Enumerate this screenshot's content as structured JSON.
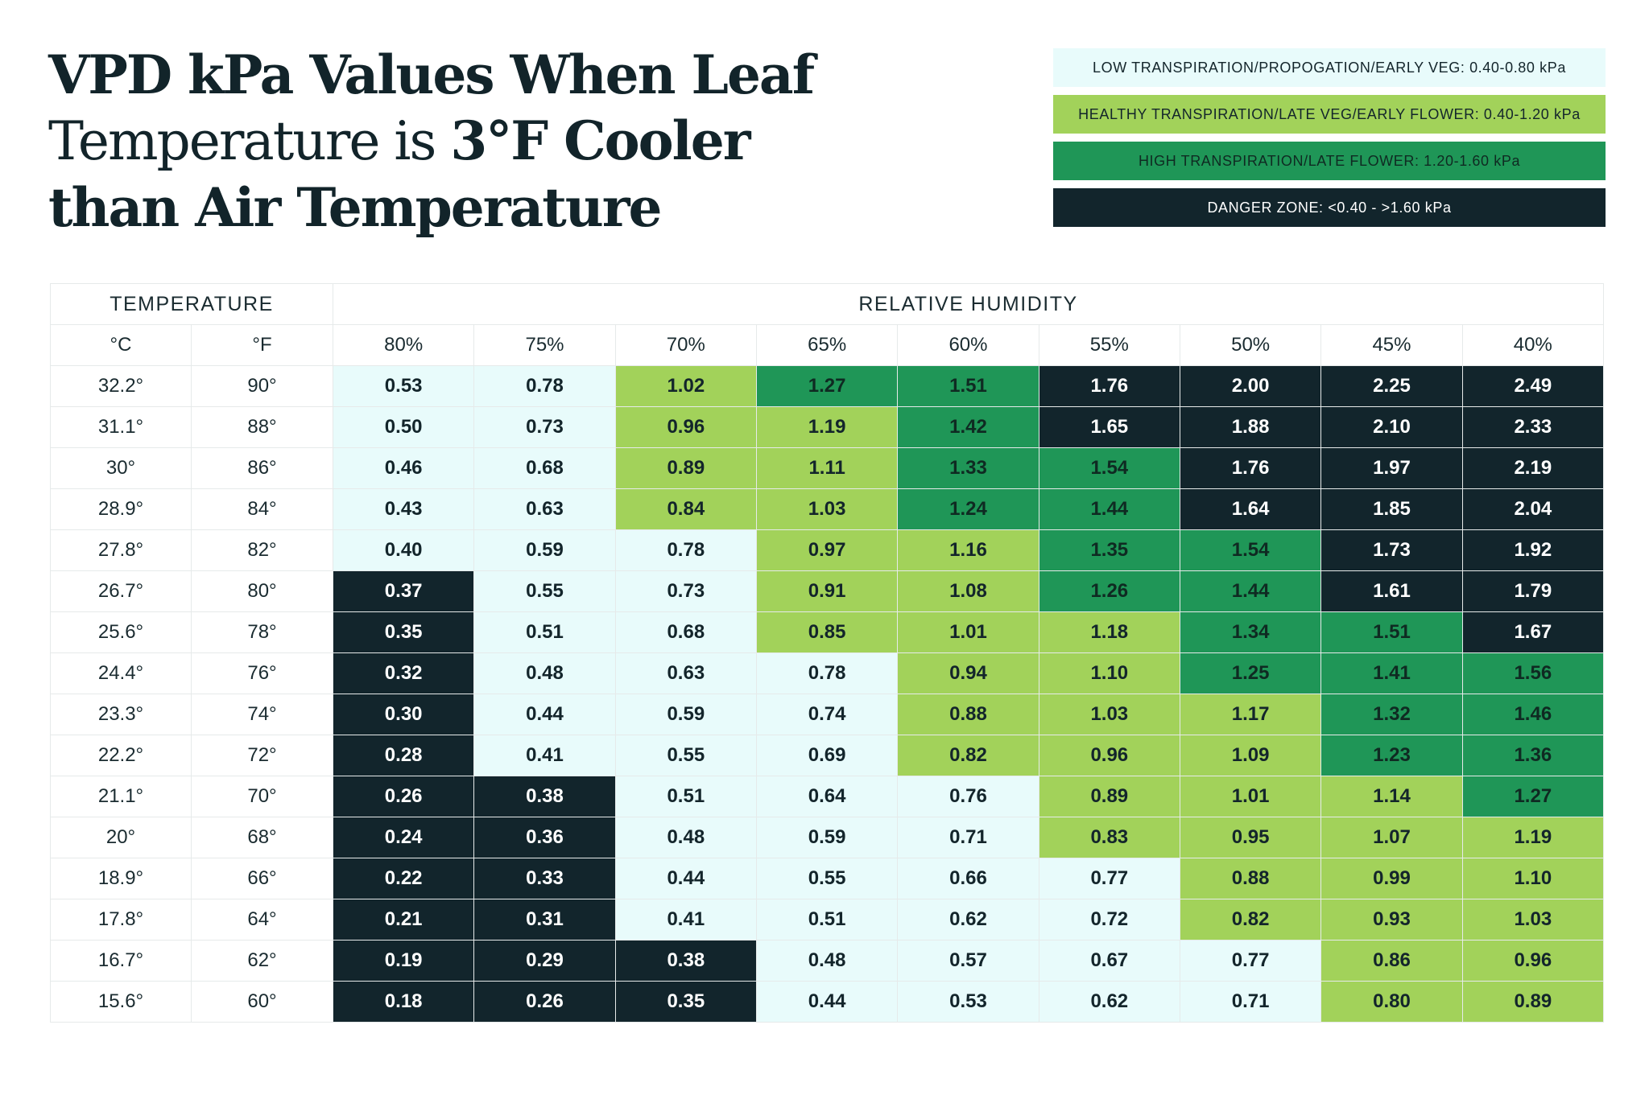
{
  "title": {
    "line1": "VPD kPa Values When Leaf",
    "line2_normal": "Temperature is ",
    "line2_bold": "3°F Cooler",
    "line3": "than Air Temperature"
  },
  "legend": [
    {
      "label": "LOW TRANSPIRATION/PROPOGATION/EARLY VEG: 0.40-0.80 kPa",
      "zone": "low",
      "color": "#e8fbfb"
    },
    {
      "label": "HEALTHY TRANSPIRATION/LATE VEG/EARLY FLOWER: 0.40-1.20 kPa",
      "zone": "healthy",
      "color": "#a2d25a"
    },
    {
      "label": "HIGH TRANSPIRATION/LATE FLOWER: 1.20-1.60 kPa",
      "zone": "high",
      "color": "#1f9657"
    },
    {
      "label": "DANGER ZONE: <0.40 - >1.60 kPa",
      "zone": "danger",
      "color": "#12252c"
    }
  ],
  "chart_data": {
    "type": "table",
    "title": "VPD kPa Values When Leaf Temperature is 3°F Cooler than Air Temperature",
    "temperature_header": "TEMPERATURE",
    "humidity_header": "RELATIVE HUMIDITY",
    "unit_c": "°C",
    "unit_f": "°F",
    "humidity": [
      "80%",
      "75%",
      "70%",
      "65%",
      "60%",
      "55%",
      "50%",
      "45%",
      "40%"
    ],
    "rows": [
      {
        "c": "32.2°",
        "f": "90°",
        "values": [
          "0.53",
          "0.78",
          "1.02",
          "1.27",
          "1.51",
          "1.76",
          "2.00",
          "2.25",
          "2.49"
        ],
        "zones": [
          "low",
          "low",
          "healthy",
          "high",
          "high",
          "danger",
          "danger",
          "danger",
          "danger"
        ]
      },
      {
        "c": "31.1°",
        "f": "88°",
        "values": [
          "0.50",
          "0.73",
          "0.96",
          "1.19",
          "1.42",
          "1.65",
          "1.88",
          "2.10",
          "2.33"
        ],
        "zones": [
          "low",
          "low",
          "healthy",
          "healthy",
          "high",
          "danger",
          "danger",
          "danger",
          "danger"
        ]
      },
      {
        "c": "30°",
        "f": "86°",
        "values": [
          "0.46",
          "0.68",
          "0.89",
          "1.11",
          "1.33",
          "1.54",
          "1.76",
          "1.97",
          "2.19"
        ],
        "zones": [
          "low",
          "low",
          "healthy",
          "healthy",
          "high",
          "high",
          "danger",
          "danger",
          "danger"
        ]
      },
      {
        "c": "28.9°",
        "f": "84°",
        "values": [
          "0.43",
          "0.63",
          "0.84",
          "1.03",
          "1.24",
          "1.44",
          "1.64",
          "1.85",
          "2.04"
        ],
        "zones": [
          "low",
          "low",
          "healthy",
          "healthy",
          "high",
          "high",
          "danger",
          "danger",
          "danger"
        ]
      },
      {
        "c": "27.8°",
        "f": "82°",
        "values": [
          "0.40",
          "0.59",
          "0.78",
          "0.97",
          "1.16",
          "1.35",
          "1.54",
          "1.73",
          "1.92"
        ],
        "zones": [
          "low",
          "low",
          "low",
          "healthy",
          "healthy",
          "high",
          "high",
          "danger",
          "danger"
        ]
      },
      {
        "c": "26.7°",
        "f": "80°",
        "values": [
          "0.37",
          "0.55",
          "0.73",
          "0.91",
          "1.08",
          "1.26",
          "1.44",
          "1.61",
          "1.79"
        ],
        "zones": [
          "danger",
          "low",
          "low",
          "healthy",
          "healthy",
          "high",
          "high",
          "danger",
          "danger"
        ]
      },
      {
        "c": "25.6°",
        "f": "78°",
        "values": [
          "0.35",
          "0.51",
          "0.68",
          "0.85",
          "1.01",
          "1.18",
          "1.34",
          "1.51",
          "1.67"
        ],
        "zones": [
          "danger",
          "low",
          "low",
          "healthy",
          "healthy",
          "healthy",
          "high",
          "high",
          "danger"
        ]
      },
      {
        "c": "24.4°",
        "f": "76°",
        "values": [
          "0.32",
          "0.48",
          "0.63",
          "0.78",
          "0.94",
          "1.10",
          "1.25",
          "1.41",
          "1.56"
        ],
        "zones": [
          "danger",
          "low",
          "low",
          "low",
          "healthy",
          "healthy",
          "high",
          "high",
          "high"
        ]
      },
      {
        "c": "23.3°",
        "f": "74°",
        "values": [
          "0.30",
          "0.44",
          "0.59",
          "0.74",
          "0.88",
          "1.03",
          "1.17",
          "1.32",
          "1.46"
        ],
        "zones": [
          "danger",
          "low",
          "low",
          "low",
          "healthy",
          "healthy",
          "healthy",
          "high",
          "high"
        ]
      },
      {
        "c": "22.2°",
        "f": "72°",
        "values": [
          "0.28",
          "0.41",
          "0.55",
          "0.69",
          "0.82",
          "0.96",
          "1.09",
          "1.23",
          "1.36"
        ],
        "zones": [
          "danger",
          "low",
          "low",
          "low",
          "healthy",
          "healthy",
          "healthy",
          "high",
          "high"
        ]
      },
      {
        "c": "21.1°",
        "f": "70°",
        "values": [
          "0.26",
          "0.38",
          "0.51",
          "0.64",
          "0.76",
          "0.89",
          "1.01",
          "1.14",
          "1.27"
        ],
        "zones": [
          "danger",
          "danger",
          "low",
          "low",
          "low",
          "healthy",
          "healthy",
          "healthy",
          "high"
        ]
      },
      {
        "c": "20°",
        "f": "68°",
        "values": [
          "0.24",
          "0.36",
          "0.48",
          "0.59",
          "0.71",
          "0.83",
          "0.95",
          "1.07",
          "1.19"
        ],
        "zones": [
          "danger",
          "danger",
          "low",
          "low",
          "low",
          "healthy",
          "healthy",
          "healthy",
          "healthy"
        ]
      },
      {
        "c": "18.9°",
        "f": "66°",
        "values": [
          "0.22",
          "0.33",
          "0.44",
          "0.55",
          "0.66",
          "0.77",
          "0.88",
          "0.99",
          "1.10"
        ],
        "zones": [
          "danger",
          "danger",
          "low",
          "low",
          "low",
          "low",
          "healthy",
          "healthy",
          "healthy"
        ]
      },
      {
        "c": "17.8°",
        "f": "64°",
        "values": [
          "0.21",
          "0.31",
          "0.41",
          "0.51",
          "0.62",
          "0.72",
          "0.82",
          "0.93",
          "1.03"
        ],
        "zones": [
          "danger",
          "danger",
          "low",
          "low",
          "low",
          "low",
          "healthy",
          "healthy",
          "healthy"
        ]
      },
      {
        "c": "16.7°",
        "f": "62°",
        "values": [
          "0.19",
          "0.29",
          "0.38",
          "0.48",
          "0.57",
          "0.67",
          "0.77",
          "0.86",
          "0.96"
        ],
        "zones": [
          "danger",
          "danger",
          "danger",
          "low",
          "low",
          "low",
          "low",
          "healthy",
          "healthy"
        ]
      },
      {
        "c": "15.6°",
        "f": "60°",
        "values": [
          "0.18",
          "0.26",
          "0.35",
          "0.44",
          "0.53",
          "0.62",
          "0.71",
          "0.80",
          "0.89"
        ],
        "zones": [
          "danger",
          "danger",
          "danger",
          "low",
          "low",
          "low",
          "low",
          "healthy",
          "healthy"
        ]
      }
    ]
  }
}
